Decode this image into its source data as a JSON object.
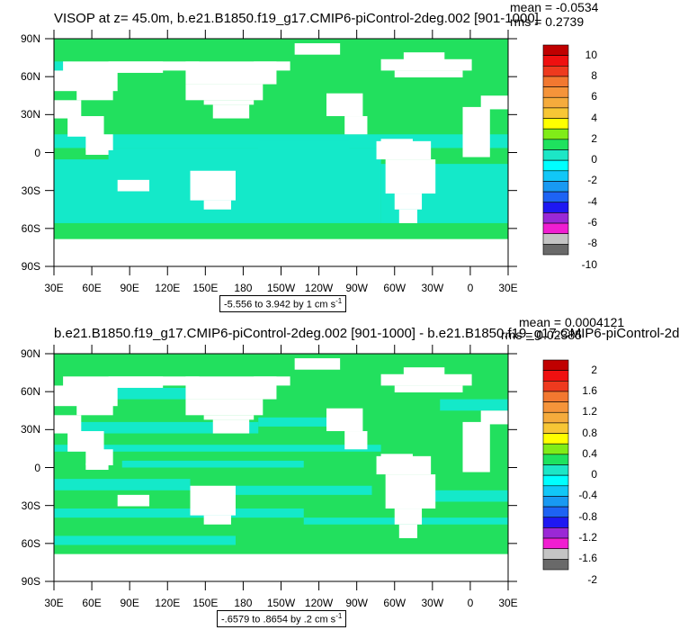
{
  "colors": {
    "ocean_green": "#22e05e",
    "ocean_cyan": "#14e9c9",
    "land": "#ffffff",
    "colorbar": [
      "#696969",
      "#c4c4c4",
      "#f01ed1",
      "#9a28d6",
      "#1e18f2",
      "#1d63f4",
      "#1899f2",
      "#11c7f7",
      "#00ffff",
      "#1ce6c6",
      "#1ee25e",
      "#80ec18",
      "#ffff00",
      "#f7c635",
      "#f5ab3c",
      "#f5943a",
      "#f27830",
      "#ee3a1e",
      "#ef1010",
      "#c00000"
    ]
  },
  "panels": [
    {
      "title": "VISOP at z=  45.0m, b.e21.B1850.f19_g17.CMIP6-piControl-2deg.002 [901-1000]",
      "mean": "mean = -0.0534",
      "rms": "rms = 0.2739",
      "lat_labels": [
        "90N",
        "60N",
        "30N",
        "0",
        "30S",
        "60S",
        "90S"
      ],
      "lon_labels": [
        "30E",
        "60E",
        "90E",
        "120E",
        "150E",
        "180",
        "150W",
        "120W",
        "90W",
        "60W",
        "30W",
        "0",
        "30E"
      ],
      "colorbar_labels": [
        "10",
        "8",
        "6",
        "4",
        "2",
        "0",
        "-2",
        "-4",
        "-6",
        "-8",
        "-10"
      ],
      "range_text": "-5.556 to 3.942 by 1 cm s",
      "range_sup": "-1"
    },
    {
      "title": "b.e21.B1850.f19_g17.CMIP6-piControl-2deg.002 [901-1000] - b.e21.B1850.f19_g17.CMIP6-piControl-2d",
      "mean": "mean = 0.0004121",
      "rms": "rms = 0.02385",
      "lat_labels": [
        "90N",
        "60N",
        "30N",
        "0",
        "30S",
        "60S",
        "90S"
      ],
      "lon_labels": [
        "30E",
        "60E",
        "90E",
        "120E",
        "150E",
        "180",
        "150W",
        "120W",
        "90W",
        "60W",
        "30W",
        "0",
        "30E"
      ],
      "colorbar_labels": [
        "2",
        "1.6",
        "1.2",
        "0.8",
        "0.4",
        "0",
        "-0.4",
        "-0.8",
        "-1.2",
        "-1.6",
        "-2"
      ],
      "range_text": "-.6579 to .8654 by .2 cm s",
      "range_sup": "-1"
    }
  ]
}
